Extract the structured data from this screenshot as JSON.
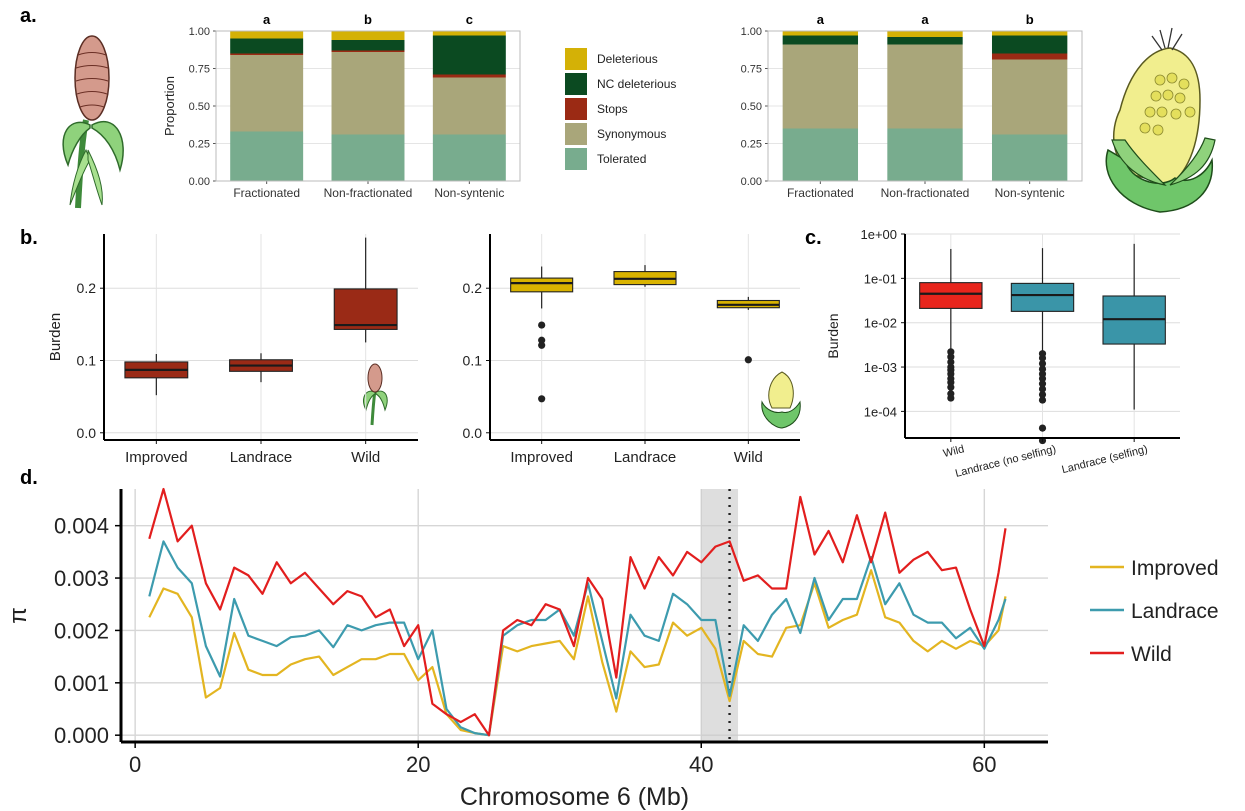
{
  "colors": {
    "deleterious": "#D4B106",
    "nc_deleterious": "#0B4A21",
    "stops": "#9B2A14",
    "synonymous": "#A9A67A",
    "tolerated": "#78AC8E",
    "box_red": "#9A2A16",
    "box_yellow": "#D9B300",
    "box_c_wild": "#E8251C",
    "box_c_land": "#3A95A8",
    "improved_line": "#E3B521",
    "landrace_line": "#3D9BAE",
    "wild_line": "#E21E1E",
    "grid": "#D9D9D9"
  },
  "panel_labels": {
    "a": "a.",
    "b": "b.",
    "c": "c.",
    "d": "d."
  },
  "chart_data": [
    {
      "id": "a_left",
      "type": "bar",
      "stacked": true,
      "categories": [
        "Fractionated",
        "Non-fractionated",
        "Non-syntenic"
      ],
      "letters": [
        "a",
        "b",
        "c"
      ],
      "ylabel": "Proportion",
      "ylim": [
        0,
        1
      ],
      "yticks": [
        "0.00",
        "0.25",
        "0.50",
        "0.75",
        "1.00"
      ],
      "grid": true,
      "legend": "right",
      "series": [
        {
          "name": "Tolerated",
          "key": "tolerated",
          "values": [
            0.33,
            0.31,
            0.31
          ]
        },
        {
          "name": "Synonymous",
          "key": "synonymous",
          "values": [
            0.51,
            0.55,
            0.38
          ]
        },
        {
          "name": "Stops",
          "key": "stops",
          "values": [
            0.01,
            0.01,
            0.02
          ]
        },
        {
          "name": "NC deleterious",
          "key": "nc_deleterious",
          "values": [
            0.1,
            0.07,
            0.26
          ]
        },
        {
          "name": "Deleterious",
          "key": "deleterious",
          "values": [
            0.05,
            0.06,
            0.03
          ]
        }
      ]
    },
    {
      "id": "a_right",
      "type": "bar",
      "stacked": true,
      "categories": [
        "Fractionated",
        "Non-fractionated",
        "Non-syntenic"
      ],
      "letters": [
        "a",
        "a",
        "b"
      ],
      "ylabel": "",
      "ylim": [
        0,
        1
      ],
      "yticks": [
        "0.00",
        "0.25",
        "0.50",
        "0.75",
        "1.00"
      ],
      "grid": true,
      "series": [
        {
          "key": "tolerated",
          "values": [
            0.35,
            0.35,
            0.31
          ]
        },
        {
          "key": "synonymous",
          "values": [
            0.56,
            0.56,
            0.5
          ]
        },
        {
          "key": "stops",
          "values": [
            0.0,
            0.0,
            0.04
          ]
        },
        {
          "key": "nc_deleterious",
          "values": [
            0.06,
            0.05,
            0.12
          ]
        },
        {
          "key": "deleterious",
          "values": [
            0.03,
            0.04,
            0.03
          ]
        }
      ]
    },
    {
      "id": "b_left",
      "type": "box",
      "categories": [
        "Improved",
        "Landrace",
        "Wild"
      ],
      "ylabel": "Burden",
      "ylim": [
        -0.01,
        0.275
      ],
      "yticks": [
        0.0,
        0.1,
        0.2
      ],
      "ytick_labels": [
        "0.0",
        "0.1",
        "0.2"
      ],
      "boxes": [
        {
          "min": 0.052,
          "q1": 0.076,
          "median": 0.087,
          "q3": 0.098,
          "max": 0.109,
          "outliers": []
        },
        {
          "min": 0.07,
          "q1": 0.085,
          "median": 0.093,
          "q3": 0.101,
          "max": 0.11,
          "outliers": []
        },
        {
          "min": 0.125,
          "q1": 0.143,
          "median": 0.149,
          "q3": 0.199,
          "max": 0.27,
          "outliers": []
        }
      ]
    },
    {
      "id": "b_right",
      "type": "box",
      "categories": [
        "Improved",
        "Landrace",
        "Wild"
      ],
      "ylabel": "",
      "ylim": [
        -0.01,
        0.275
      ],
      "yticks": [
        0.0,
        0.1,
        0.2
      ],
      "ytick_labels": [
        "0.0",
        "0.1",
        "0.2"
      ],
      "boxes": [
        {
          "min": 0.172,
          "q1": 0.195,
          "median": 0.207,
          "q3": 0.214,
          "max": 0.23,
          "outliers": [
            0.149,
            0.128,
            0.121,
            0.047
          ]
        },
        {
          "min": 0.202,
          "q1": 0.205,
          "median": 0.213,
          "q3": 0.223,
          "max": 0.232,
          "outliers": []
        },
        {
          "min": 0.17,
          "q1": 0.173,
          "median": 0.177,
          "q3": 0.183,
          "max": 0.188,
          "outliers": [
            0.101
          ]
        }
      ]
    },
    {
      "id": "c",
      "type": "box",
      "yscale": "log",
      "categories": [
        "Wild",
        "Landrace (no selfing)",
        "Landrace (selfing)"
      ],
      "ylabel": "Burden",
      "ylim_log10": [
        -4.6,
        0
      ],
      "yticks_log10": [
        0,
        -1,
        -2,
        -3,
        -4
      ],
      "ytick_labels": [
        "1e+00",
        "1e-01",
        "1e-02",
        "1e-03",
        "1e-04"
      ],
      "boxes": [
        {
          "min": 0.0025,
          "q1": 0.021,
          "median": 0.045,
          "q3": 0.08,
          "max": 0.46,
          "outliers": [
            0.0022,
            0.0017,
            0.0013,
            0.001,
            0.00085,
            0.0007,
            0.00055,
            0.00045,
            0.00035,
            0.00025,
            0.0002
          ]
        },
        {
          "min": 0.0022,
          "q1": 0.018,
          "median": 0.042,
          "q3": 0.077,
          "max": 0.48,
          "outliers": [
            0.002,
            0.0016,
            0.0012,
            0.0009,
            0.0007,
            0.00055,
            0.00042,
            0.00032,
            0.00024,
            0.00018,
            4.2e-05,
            2.2e-05
          ]
        },
        {
          "min": 0.00011,
          "q1": 0.0033,
          "median": 0.012,
          "q3": 0.04,
          "max": 0.6,
          "outliers": []
        }
      ]
    },
    {
      "id": "d",
      "type": "line",
      "xlabel": "Chromosome 6 (Mb)",
      "ylabel": "π",
      "xlim": [
        -1,
        64.5
      ],
      "ylim": [
        -0.00013,
        0.0047
      ],
      "xticks": [
        0,
        20,
        40,
        60
      ],
      "yticks": [
        0.0,
        0.001,
        0.002,
        0.003,
        0.004
      ],
      "ytick_labels": [
        "0.000",
        "0.001",
        "0.002",
        "0.003",
        "0.004"
      ],
      "shaded_region": [
        40.0,
        42.6
      ],
      "vline": 42.0,
      "legend": "right",
      "x": [
        1,
        2,
        3,
        4,
        5,
        6,
        7,
        8,
        9,
        10,
        11,
        12,
        13,
        14,
        15,
        16,
        17,
        18,
        19,
        20,
        21,
        22,
        23,
        24,
        25,
        26,
        27,
        28,
        29,
        30,
        31,
        32,
        33,
        34,
        35,
        36,
        37,
        38,
        39,
        40,
        41,
        42,
        43,
        44,
        45,
        46,
        47,
        48,
        49,
        50,
        51,
        52,
        53,
        54,
        55,
        56,
        57,
        58,
        59,
        60,
        61,
        61.5
      ],
      "series": [
        {
          "name": "Improved",
          "key": "improved_line",
          "values": [
            0.00225,
            0.0028,
            0.0027,
            0.00225,
            0.00072,
            0.0009,
            0.00195,
            0.00125,
            0.00115,
            0.00115,
            0.00135,
            0.00145,
            0.0015,
            0.00115,
            0.0013,
            0.00145,
            0.00145,
            0.00155,
            0.00155,
            0.00105,
            0.0013,
            0.0004,
            0.0001,
            4e-05,
            0.0,
            0.0017,
            0.0016,
            0.0017,
            0.00175,
            0.0018,
            0.00145,
            0.00265,
            0.0014,
            0.00045,
            0.0016,
            0.0013,
            0.00135,
            0.00215,
            0.0019,
            0.00205,
            0.00165,
            0.00065,
            0.0018,
            0.00155,
            0.0015,
            0.00205,
            0.0021,
            0.0029,
            0.00205,
            0.0022,
            0.0023,
            0.00315,
            0.00225,
            0.00215,
            0.0018,
            0.0016,
            0.0018,
            0.00165,
            0.0018,
            0.0017,
            0.002,
            0.00265
          ]
        },
        {
          "name": "Landrace",
          "key": "landrace_line",
          "values": [
            0.00265,
            0.0037,
            0.0032,
            0.0029,
            0.0017,
            0.00112,
            0.0026,
            0.0019,
            0.0018,
            0.0017,
            0.00187,
            0.0019,
            0.002,
            0.00168,
            0.0021,
            0.002,
            0.0021,
            0.00215,
            0.00215,
            0.00145,
            0.002,
            0.0005,
            0.00015,
            4e-05,
            0.0,
            0.0019,
            0.0021,
            0.0022,
            0.0022,
            0.0024,
            0.0019,
            0.0029,
            0.0018,
            0.0007,
            0.0023,
            0.0019,
            0.0018,
            0.0027,
            0.0025,
            0.0022,
            0.0022,
            0.00075,
            0.0021,
            0.0018,
            0.0023,
            0.0026,
            0.00195,
            0.003,
            0.0022,
            0.0026,
            0.0026,
            0.0034,
            0.0025,
            0.0029,
            0.0023,
            0.00215,
            0.00215,
            0.00185,
            0.00205,
            0.00165,
            0.0022,
            0.0026
          ]
        },
        {
          "name": "Wild",
          "key": "wild_line",
          "values": [
            0.00375,
            0.0047,
            0.0037,
            0.004,
            0.0029,
            0.0024,
            0.0032,
            0.00305,
            0.0027,
            0.0033,
            0.0029,
            0.0031,
            0.0028,
            0.0025,
            0.00275,
            0.00265,
            0.00225,
            0.0024,
            0.0017,
            0.0021,
            0.0006,
            0.0004,
            0.00025,
            0.0004,
            0.0,
            0.002,
            0.0022,
            0.0021,
            0.0025,
            0.0024,
            0.0017,
            0.003,
            0.0026,
            0.0011,
            0.0034,
            0.0028,
            0.0034,
            0.00305,
            0.0035,
            0.0033,
            0.0036,
            0.0037,
            0.00295,
            0.00305,
            0.0028,
            0.0028,
            0.00455,
            0.00345,
            0.0039,
            0.0033,
            0.0042,
            0.0033,
            0.00425,
            0.0031,
            0.00335,
            0.0035,
            0.00315,
            0.0032,
            0.0024,
            0.0017,
            0.0031,
            0.00395
          ]
        }
      ]
    }
  ]
}
